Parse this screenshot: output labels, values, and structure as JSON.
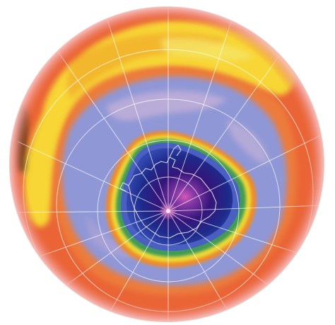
{
  "map": {
    "projection": "south-polar-orthographic",
    "view": "southern-hemisphere",
    "features": [
      "ozone-concentration-field",
      "ozone-hole",
      "antarctica-outline",
      "graticule",
      "south-pole-marker"
    ],
    "palette": {
      "background": "#ffffff",
      "limb-pink": "#f3a2a0",
      "outer-orange": "#ea6436",
      "yellow-band": "#f7d636",
      "gold": "#f0a22b",
      "periwinkle": "#8f97d6",
      "lavender": "#c3b2d8",
      "hole-rim-orange": "#ef8a2c",
      "hole-rim-yellow": "#eddb35",
      "hole-rim-green": "#3f9a58",
      "hole-blue": "#4a5fc2",
      "hole-navy": "#1d2a8a",
      "hole-core": "#35157a",
      "center-glow": "#d659b8",
      "graticule-line": "#ffffff"
    }
  }
}
